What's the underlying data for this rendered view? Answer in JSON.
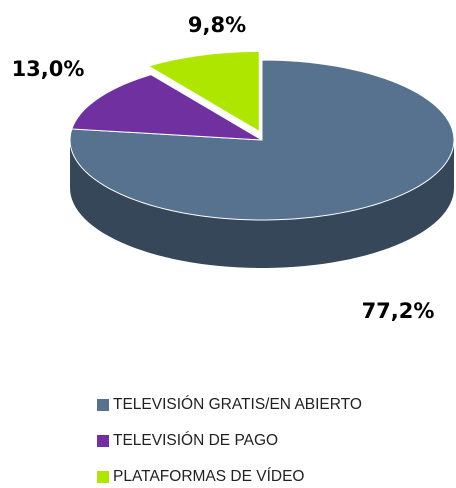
{
  "chart_data": {
    "type": "pie",
    "categories": [
      "TELEVISIÓN GRATIS/EN ABIERTO",
      "TELEVISIÓN DE PAGO",
      "PLATAFORMAS DE VÍDEO"
    ],
    "values": [
      77.2,
      13.0,
      9.8
    ],
    "value_labels": [
      "77,2%",
      "13,0%",
      "9,8%"
    ],
    "colors": [
      "#56728e",
      "#7030a0",
      "#aee600"
    ],
    "legend": "bottom"
  }
}
